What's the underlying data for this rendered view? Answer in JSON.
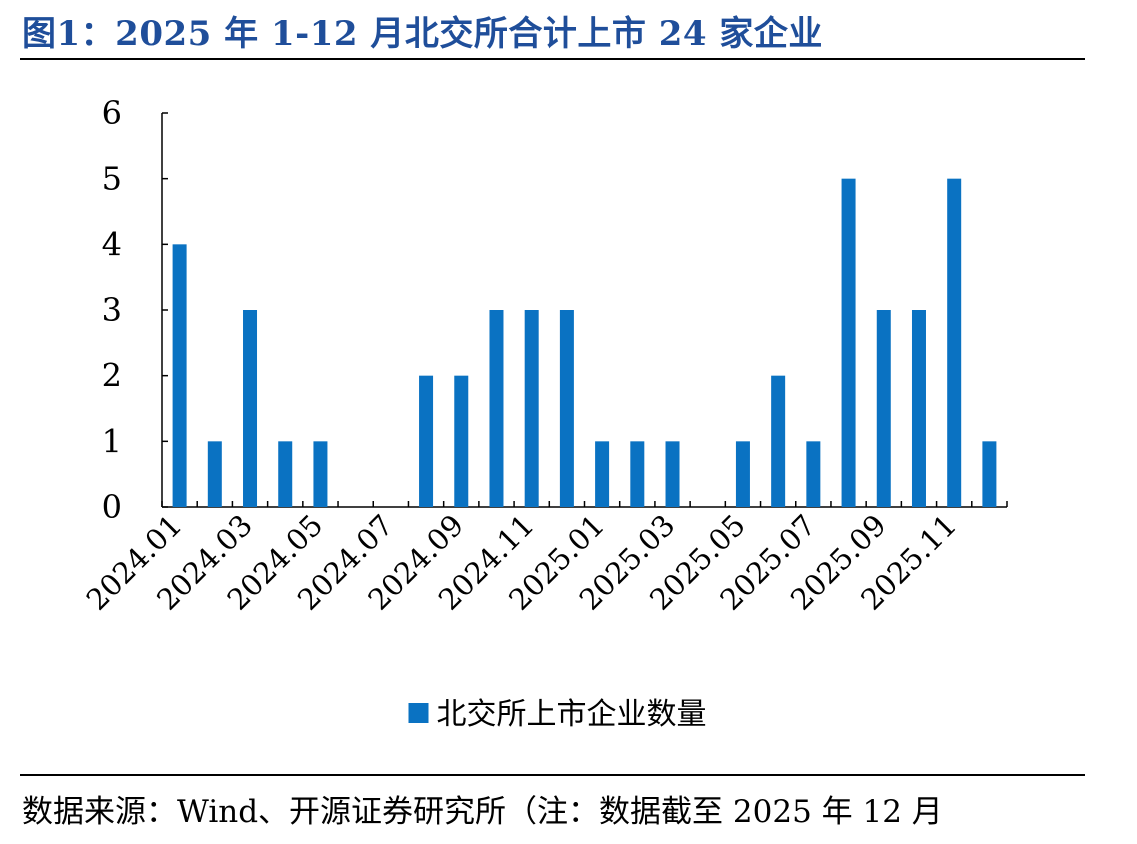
{
  "title": "图1：2025 年 1-12 月北交所合计上市 24 家企业",
  "source": "数据来源：Wind、开源证券研究所（注：数据截至 2025 年 12 月",
  "chart_data": {
    "type": "bar",
    "categories": [
      "2024.01",
      "2024.02",
      "2024.03",
      "2024.04",
      "2024.05",
      "2024.06",
      "2024.07",
      "2024.08",
      "2024.09",
      "2024.10",
      "2024.11",
      "2024.12",
      "2025.01",
      "2025.02",
      "2025.03",
      "2025.04",
      "2025.05",
      "2025.06",
      "2025.07",
      "2025.08",
      "2025.09",
      "2025.10",
      "2025.11",
      "2025.12"
    ],
    "tick_labels": [
      "2024.01",
      "",
      "2024.03",
      "",
      "2024.05",
      "",
      "2024.07",
      "",
      "2024.09",
      "",
      "2024.11",
      "",
      "2025.01",
      "",
      "2025.03",
      "",
      "2025.05",
      "",
      "2025.07",
      "",
      "2025.09",
      "",
      "2025.11",
      ""
    ],
    "series": [
      {
        "name": "北交所上市企业数量",
        "values": [
          4,
          1,
          3,
          1,
          1,
          0,
          0,
          2,
          2,
          3,
          3,
          3,
          1,
          1,
          1,
          0,
          1,
          2,
          1,
          5,
          3,
          3,
          5,
          1
        ],
        "color": "#0a72c2"
      }
    ],
    "ylim": [
      0,
      6
    ],
    "yticks": [
      0,
      1,
      2,
      3,
      4,
      5,
      6
    ],
    "grid": false,
    "legend_position": "bottom-center"
  }
}
